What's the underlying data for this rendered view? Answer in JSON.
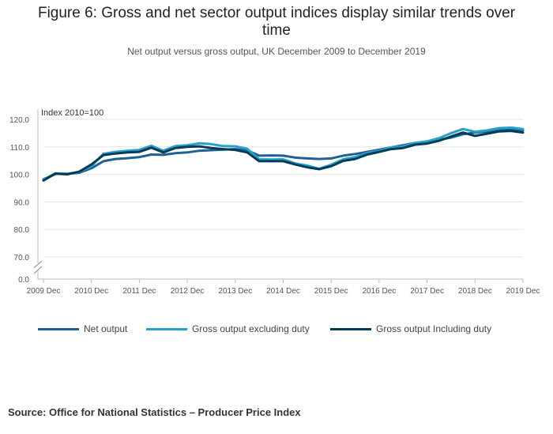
{
  "header": {
    "title_line1": "Figure 6: Gross and net sector output indices display similar trends over",
    "title_line2": "time",
    "subtitle": "Net output versus gross output, UK December 2009 to December 2019"
  },
  "footer": {
    "source": "Source: Office for National Statistics – Producer Price Index"
  },
  "chart_data": {
    "type": "line",
    "title": "Figure 6: Gross and net sector output indices display similar trends over time",
    "subtitle": "Net output versus gross output, UK December 2009 to December 2019",
    "ylabel": "Index 2010=100",
    "xlabel": "",
    "ylim": [
      0,
      120
    ],
    "axis_break": true,
    "y_ticks": [
      "120.0",
      "110.0",
      "100.0",
      "90.0",
      "80.0",
      "70.0",
      "0.0"
    ],
    "y_tick_values": [
      120,
      110,
      100,
      90,
      80,
      70,
      0
    ],
    "x_ticks": [
      "2009 Dec",
      "2010 Dec",
      "2011 Dec",
      "2012 Dec",
      "2013 Dec",
      "2014 Dec",
      "2015 Dec",
      "2016 Dec",
      "2017 Dec",
      "2018 Dec",
      "2019 Dec"
    ],
    "x_tick_values": [
      "2009-12",
      "2010-12",
      "2011-12",
      "2012-12",
      "2013-12",
      "2014-12",
      "2015-12",
      "2016-12",
      "2017-12",
      "2018-12",
      "2019-12"
    ],
    "grid": true,
    "legend_position": "bottom",
    "x": [
      "2009-12",
      "2010-03",
      "2010-06",
      "2010-09",
      "2010-12",
      "2011-03",
      "2011-06",
      "2011-09",
      "2011-12",
      "2012-03",
      "2012-06",
      "2012-09",
      "2012-12",
      "2013-03",
      "2013-06",
      "2013-09",
      "2013-12",
      "2014-03",
      "2014-06",
      "2014-09",
      "2014-12",
      "2015-03",
      "2015-06",
      "2015-09",
      "2015-12",
      "2016-03",
      "2016-06",
      "2016-09",
      "2016-12",
      "2017-03",
      "2017-06",
      "2017-09",
      "2017-12",
      "2018-03",
      "2018-06",
      "2018-09",
      "2018-12",
      "2019-03",
      "2019-06",
      "2019-09",
      "2019-12"
    ],
    "series": [
      {
        "name": "Net output",
        "color": "#206095",
        "values": [
          98.2,
          100.2,
          100.3,
          100.6,
          102.2,
          104.8,
          105.6,
          105.9,
          106.3,
          107.2,
          107.1,
          107.7,
          108.0,
          108.6,
          108.8,
          109.0,
          109.2,
          108.7,
          106.8,
          106.9,
          106.8,
          106.1,
          105.8,
          105.6,
          105.8,
          106.8,
          107.4,
          108.2,
          109.0,
          109.8,
          110.6,
          111.4,
          112.0,
          112.6,
          113.4,
          114.6,
          115.2,
          115.6,
          116.0,
          116.2,
          116.0
        ]
      },
      {
        "name": "Gross output excluding duty",
        "color": "#27a0cc",
        "values": [
          98.0,
          100.4,
          100.2,
          100.9,
          103.0,
          107.5,
          108.2,
          108.6,
          108.9,
          110.4,
          108.6,
          110.3,
          110.6,
          111.3,
          111.0,
          110.3,
          110.2,
          109.3,
          105.5,
          105.4,
          105.5,
          104.0,
          103.2,
          102.0,
          103.5,
          105.5,
          106.3,
          107.8,
          108.6,
          109.8,
          110.2,
          111.4,
          112.0,
          113.2,
          115.0,
          116.5,
          115.5,
          116.0,
          116.8,
          117.0,
          116.5
        ]
      },
      {
        "name": "Gross output Including duty",
        "color": "#003c57",
        "values": [
          97.8,
          100.3,
          100.0,
          101.0,
          103.6,
          107.0,
          107.6,
          108.0,
          108.2,
          109.7,
          108.0,
          109.6,
          110.0,
          110.2,
          109.6,
          109.2,
          108.9,
          108.0,
          104.8,
          104.8,
          104.8,
          103.6,
          102.6,
          101.9,
          103.0,
          104.9,
          105.6,
          107.2,
          108.2,
          109.2,
          109.6,
          110.8,
          111.2,
          112.2,
          113.8,
          115.2,
          114.0,
          114.8,
          115.6,
          115.8,
          115.2
        ]
      }
    ]
  }
}
